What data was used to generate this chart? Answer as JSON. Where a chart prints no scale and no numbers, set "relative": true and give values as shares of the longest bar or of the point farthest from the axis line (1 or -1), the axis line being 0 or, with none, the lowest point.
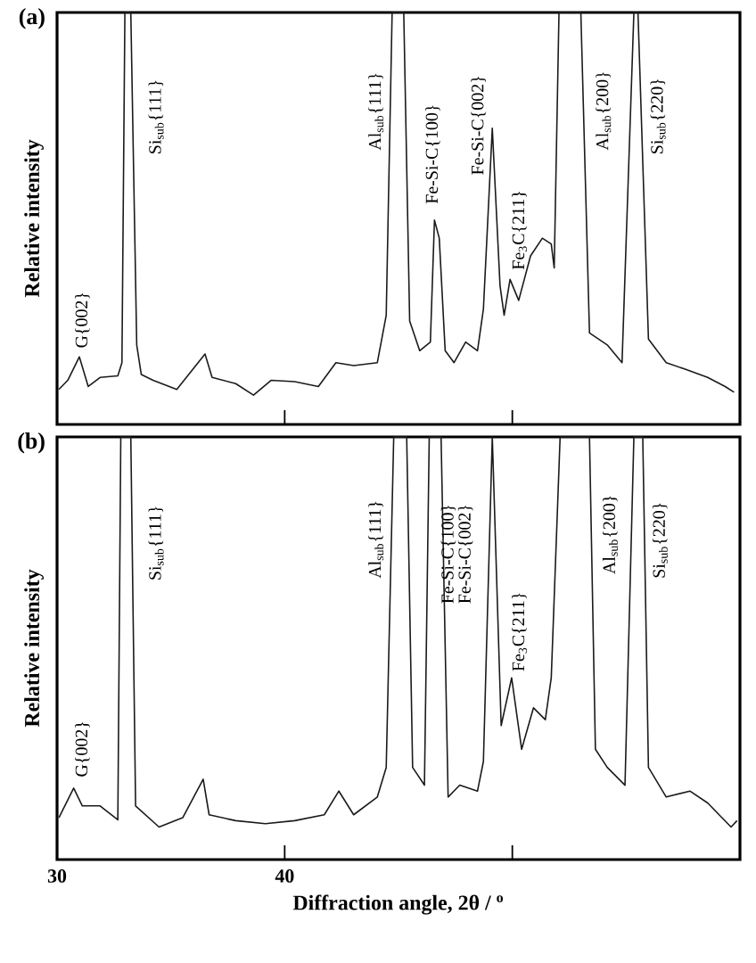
{
  "chart_data": [
    {
      "type": "line",
      "title": "(a)",
      "ylabel": "Relative intensity",
      "relative": true,
      "color": "#1a1a1a",
      "xlim": [
        30,
        60
      ],
      "xticks": [
        30,
        40,
        {
          "value": 50,
          "label": null
        }
      ],
      "tick_labels": false,
      "line_style": "solid",
      "x": [
        30.08,
        30.47,
        30.98,
        31.37,
        31.89,
        32.67,
        32.85,
        32.98,
        33.24,
        33.5,
        33.7,
        34.22,
        35.26,
        36.5,
        36.81,
        37.85,
        38.63,
        39.4,
        40.44,
        41.48,
        42.25,
        43.03,
        44.07,
        44.46,
        44.72,
        45.23,
        45.49,
        45.93,
        46.4,
        46.58,
        46.79,
        47.05,
        47.44,
        47.95,
        48.47,
        48.73,
        49.12,
        49.46,
        49.64,
        49.9,
        50.28,
        50.8,
        51.32,
        51.71,
        51.84,
        52.05,
        53.01,
        53.39,
        54.17,
        54.82,
        55.34,
        55.52,
        55.98,
        56.76,
        57.54,
        58.58,
        59.35,
        59.74
      ],
      "values": [
        0.085,
        0.107,
        0.164,
        0.092,
        0.114,
        0.118,
        0.15,
        1,
        1,
        0.193,
        0.121,
        0.107,
        0.085,
        0.171,
        0.114,
        0.099,
        0.071,
        0.107,
        0.104,
        0.092,
        0.15,
        0.143,
        0.15,
        0.265,
        1,
        1,
        0.251,
        0.179,
        0.2,
        0.496,
        0.452,
        0.179,
        0.15,
        0.2,
        0.179,
        0.28,
        0.719,
        0.337,
        0.265,
        0.352,
        0.301,
        0.409,
        0.452,
        0.438,
        0.38,
        1,
        1,
        0.222,
        0.193,
        0.15,
        1,
        1,
        0.207,
        0.15,
        0.135,
        0.114,
        0.092,
        0.078
      ],
      "annotations": [
        "G{002}",
        "Si$_{sub}${111}",
        "Al$_{sub}${111}",
        "Fe-Si-C{100}",
        "Fe-Si-C{002}",
        "Fe$_{3}$C{211}",
        "Al$_{sub}${200}",
        "Si$_{sub}${220}"
      ]
    },
    {
      "type": "line",
      "title": "(b)",
      "ylabel": "Relative intensity",
      "xlabel": "Diffraction angle, 2θ / $^{o}$",
      "relative": true,
      "color": "#1a1a1a",
      "xlim": [
        30,
        60
      ],
      "xticks": [
        30,
        40,
        {
          "value": 50,
          "label": null
        }
      ],
      "tick_labels": "x",
      "line_style": "solid",
      "x": [
        30.08,
        30.73,
        31.11,
        31.89,
        32.67,
        32.8,
        33.24,
        33.45,
        34.48,
        35.52,
        36.42,
        36.68,
        37.85,
        39.15,
        40.44,
        41.74,
        42.38,
        43.03,
        44.07,
        44.46,
        44.79,
        45.36,
        45.62,
        46.14,
        46.35,
        46.87,
        47.18,
        47.69,
        48.47,
        48.73,
        49.12,
        49.51,
        49.97,
        50.41,
        50.93,
        51.45,
        51.71,
        52.1,
        53.39,
        53.65,
        54.17,
        54.95,
        55.34,
        55.73,
        55.98,
        56.76,
        57.8,
        58.58,
        59.61,
        59.87
      ],
      "values": [
        0.099,
        0.169,
        0.127,
        0.127,
        0.094,
        1,
        1,
        0.127,
        0.077,
        0.099,
        0.19,
        0.106,
        0.092,
        0.085,
        0.092,
        0.106,
        0.162,
        0.106,
        0.148,
        0.218,
        1,
        1,
        0.218,
        0.176,
        1,
        1,
        0.148,
        0.176,
        0.162,
        0.232,
        1,
        0.317,
        0.43,
        0.261,
        0.359,
        0.331,
        0.43,
        1,
        1,
        0.261,
        0.218,
        0.176,
        1,
        1,
        0.218,
        0.148,
        0.162,
        0.134,
        0.077,
        0.092
      ],
      "annotations": [
        "G{002}",
        "Si$_{sub}${111}",
        "Al$_{sub}${111}",
        "Fe-Si-C{100}",
        "Fe-Si-C{002}",
        "Fe$_{3}$C{211}",
        "Al$_{sub}${200}",
        "Si$_{sub}${220}"
      ]
    }
  ]
}
